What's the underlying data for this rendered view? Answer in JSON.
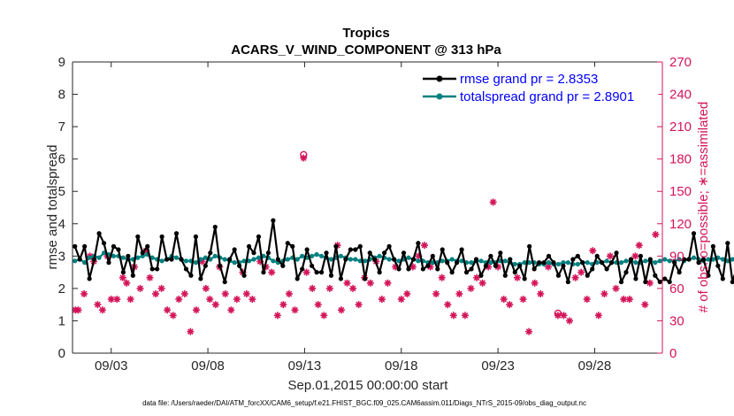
{
  "chart_data": {
    "type": "line",
    "title": "Tropics",
    "subtitle": "ACARS_V_WIND_COMPONENT @ 313 hPa",
    "xlabel": "Sep.01,2015 00:00:00 start",
    "ylabel": "rmse and totalspread",
    "ylabel_right": "# of obs: o=possible; ∗=assimilated",
    "xlim": [
      1,
      31.5
    ],
    "ylim": [
      0,
      9
    ],
    "ylim_right": [
      0,
      270
    ],
    "x_ticks": [
      3,
      8,
      13,
      18,
      23,
      28
    ],
    "x_tick_labels": [
      "09/03",
      "09/08",
      "09/13",
      "09/18",
      "09/23",
      "09/28"
    ],
    "y_ticks": [
      0,
      1,
      2,
      3,
      4,
      5,
      6,
      7,
      8,
      9
    ],
    "y_ticks_right": [
      0,
      30,
      60,
      90,
      120,
      150,
      180,
      210,
      240,
      270
    ],
    "footnote": "data file: /Users/raeder/DAI/ATM_forcXX/CAM6_setup/f.e21.FHIST_BGC.f09_025.CAM6assim.011/Diags_NTrS_2015-09/obs_diag_output.nc",
    "legend_position": "top-right",
    "series": [
      {
        "name": "rmse grand pr = 2.8353",
        "color": "#000000",
        "axis": "left",
        "x_start": 1.125,
        "x_step": 0.25,
        "values": [
          3.3,
          2.9,
          3.3,
          2.3,
          2.9,
          3.7,
          3.4,
          2.8,
          3.3,
          3.2,
          2.5,
          3.0,
          2.4,
          3.6,
          3.1,
          3.3,
          2.6,
          2.6,
          3.6,
          2.9,
          2.9,
          3.7,
          2.9,
          2.6,
          2.4,
          3.6,
          2.3,
          2.7,
          3.1,
          3.9,
          2.7,
          2.2,
          2.9,
          3.2,
          2.7,
          2.4,
          3.3,
          3.1,
          3.6,
          2.5,
          3.1,
          4.1,
          2.9,
          2.7,
          3.4,
          3.3,
          2.3,
          2.6,
          3.2,
          2.7,
          2.5,
          2.5,
          3.1,
          2.4,
          3.3,
          2.3,
          2.9,
          3.2,
          3.2,
          3.3,
          2.3,
          3.1,
          2.9,
          2.5,
          3.1,
          3.3,
          2.9,
          2.6,
          3.1,
          2.6,
          2.9,
          3.4,
          2.6,
          2.7,
          3.0,
          2.6,
          3.2,
          2.8,
          2.5,
          2.8,
          3.2,
          2.5,
          2.6,
          2.9,
          2.4,
          2.7,
          3.0,
          2.7,
          3.1,
          2.4,
          2.9,
          2.5,
          2.7,
          2.3,
          3.3,
          2.6,
          2.8,
          2.8,
          3.0,
          2.8,
          2.4,
          2.7,
          2.2,
          2.9,
          3.0,
          2.8,
          2.4,
          2.6,
          3.0,
          2.8,
          2.6,
          2.8,
          3.1,
          2.2,
          2.5,
          2.9,
          2.3,
          3.0,
          2.2,
          2.9,
          2.4,
          2.2,
          2.3,
          2.2,
          2.8,
          2.5,
          2.9,
          2.9,
          3.7,
          2.8,
          2.9,
          2.4,
          3.3,
          2.7,
          2.3,
          3.4,
          2.2,
          2.7,
          2.6,
          2.3,
          3.3,
          2.4,
          2.6,
          2.3,
          2.7,
          2.9,
          3.2,
          2.4,
          2.8,
          3.4,
          2.7,
          3.6,
          2.9,
          2.4,
          3.3,
          2.5,
          2.5,
          3.0,
          2.5,
          2.8,
          2.9,
          3.0
        ]
      },
      {
        "name": "totalspread grand pr = 2.8901",
        "color": "#008080",
        "axis": "left",
        "x_start": 1.125,
        "x_step": 0.25,
        "values": [
          2.85,
          2.9,
          2.8,
          2.95,
          3.0,
          2.95,
          3.1,
          3.05,
          3.0,
          3.0,
          2.95,
          2.9,
          2.9,
          2.95,
          3.0,
          3.05,
          2.95,
          2.9,
          2.85,
          2.9,
          3.0,
          2.95,
          2.9,
          2.85,
          2.85,
          2.8,
          2.9,
          2.95,
          2.9,
          3.0,
          2.95,
          2.9,
          2.85,
          2.8,
          2.8,
          2.85,
          2.85,
          2.9,
          2.95,
          3.0,
          2.95,
          2.85,
          2.8,
          2.85,
          2.9,
          2.95,
          2.9,
          3.0,
          2.95,
          3.0,
          3.05,
          3.0,
          2.95,
          2.9,
          2.95,
          3.0,
          2.95,
          2.9,
          2.9,
          2.85,
          2.85,
          2.9,
          2.95,
          3.0,
          2.95,
          2.9,
          2.9,
          2.85,
          2.9,
          2.95,
          2.9,
          2.85,
          2.85,
          2.8,
          2.8,
          2.8,
          2.85,
          2.85,
          2.9,
          2.85,
          2.85,
          2.8,
          2.8,
          2.85,
          2.85,
          2.8,
          2.8,
          2.8,
          2.85,
          2.85,
          2.8,
          2.75,
          2.75,
          2.8,
          2.8,
          2.8,
          2.75,
          2.75,
          2.8,
          2.75,
          2.75,
          2.8,
          2.8,
          2.75,
          2.75,
          2.8,
          2.8,
          2.75,
          2.8,
          2.8,
          2.85,
          2.8,
          2.8,
          2.8,
          2.85,
          2.85,
          2.8,
          2.8,
          2.85,
          2.85,
          2.8,
          2.85,
          2.9,
          2.85,
          2.85,
          2.9,
          2.85,
          2.9,
          2.95,
          2.9,
          2.85,
          2.9,
          2.9,
          2.95,
          2.9,
          2.85,
          2.9,
          2.85,
          2.9,
          2.9,
          2.85,
          2.9,
          2.9,
          2.95,
          3.0,
          2.95,
          2.9,
          3.0,
          3.05,
          2.95,
          3.0,
          3.05,
          3.0,
          3.0,
          3.0,
          2.95,
          2.9,
          3.0,
          3.0,
          2.95,
          3.0,
          2.95
        ]
      },
      {
        "name": "# of obs assimilated",
        "color": "#d4145a",
        "axis": "right",
        "marker": "asterisk",
        "points": [
          [
            1.15,
            40
          ],
          [
            1.3,
            40
          ],
          [
            1.6,
            55
          ],
          [
            1.9,
            90
          ],
          [
            2.1,
            85
          ],
          [
            2.3,
            45
          ],
          [
            2.55,
            40
          ],
          [
            2.8,
            90
          ],
          [
            3.0,
            50
          ],
          [
            3.3,
            50
          ],
          [
            3.6,
            70
          ],
          [
            3.8,
            65
          ],
          [
            4.0,
            50
          ],
          [
            4.2,
            80
          ],
          [
            4.5,
            60
          ],
          [
            4.8,
            95
          ],
          [
            5.0,
            70
          ],
          [
            5.3,
            55
          ],
          [
            5.6,
            60
          ],
          [
            5.9,
            40
          ],
          [
            6.2,
            35
          ],
          [
            6.5,
            50
          ],
          [
            6.8,
            55
          ],
          [
            7.1,
            20
          ],
          [
            7.4,
            40
          ],
          [
            7.7,
            85
          ],
          [
            7.9,
            60
          ],
          [
            8.1,
            50
          ],
          [
            8.4,
            45
          ],
          [
            8.6,
            80
          ],
          [
            8.9,
            55
          ],
          [
            9.2,
            40
          ],
          [
            9.5,
            50
          ],
          [
            9.8,
            75
          ],
          [
            10.0,
            55
          ],
          [
            10.3,
            50
          ],
          [
            10.7,
            85
          ],
          [
            11.0,
            80
          ],
          [
            11.3,
            75
          ],
          [
            11.6,
            35
          ],
          [
            11.9,
            45
          ],
          [
            12.2,
            55
          ],
          [
            12.5,
            40
          ],
          [
            12.95,
            181
          ],
          [
            13.1,
            75
          ],
          [
            13.4,
            60
          ],
          [
            13.7,
            45
          ],
          [
            14.0,
            35
          ],
          [
            14.3,
            60
          ],
          [
            14.7,
            100
          ],
          [
            14.9,
            40
          ],
          [
            15.2,
            65
          ],
          [
            15.5,
            60
          ],
          [
            15.8,
            45
          ],
          [
            16.1,
            70
          ],
          [
            16.4,
            65
          ],
          [
            16.7,
            85
          ],
          [
            17.0,
            50
          ],
          [
            17.3,
            65
          ],
          [
            17.7,
            80
          ],
          [
            18.0,
            50
          ],
          [
            18.3,
            55
          ],
          [
            18.6,
            80
          ],
          [
            18.9,
            90
          ],
          [
            19.2,
            100
          ],
          [
            19.5,
            80
          ],
          [
            19.8,
            55
          ],
          [
            20.1,
            70
          ],
          [
            20.4,
            45
          ],
          [
            20.7,
            35
          ],
          [
            21.0,
            55
          ],
          [
            21.3,
            35
          ],
          [
            21.6,
            60
          ],
          [
            21.9,
            70
          ],
          [
            22.2,
            65
          ],
          [
            22.5,
            80
          ],
          [
            22.75,
            140
          ],
          [
            23.0,
            80
          ],
          [
            23.3,
            50
          ],
          [
            23.6,
            45
          ],
          [
            24.0,
            70
          ],
          [
            24.3,
            50
          ],
          [
            24.6,
            20
          ],
          [
            24.9,
            65
          ],
          [
            25.2,
            55
          ],
          [
            25.6,
            80
          ],
          [
            26.1,
            35
          ],
          [
            26.4,
            35
          ],
          [
            26.7,
            30
          ],
          [
            27.0,
            70
          ],
          [
            27.3,
            75
          ],
          [
            27.6,
            50
          ],
          [
            27.9,
            95
          ],
          [
            28.2,
            35
          ],
          [
            28.5,
            55
          ],
          [
            28.8,
            90
          ],
          [
            29.1,
            60
          ],
          [
            29.5,
            50
          ],
          [
            29.8,
            50
          ],
          [
            30.1,
            90
          ],
          [
            30.3,
            100
          ],
          [
            30.6,
            45
          ],
          [
            30.85,
            65
          ],
          [
            31.15,
            110
          ]
        ]
      },
      {
        "name": "# of obs possible",
        "color": "#d4145a",
        "axis": "right",
        "marker": "circle",
        "points": [
          [
            12.95,
            184
          ],
          [
            26.1,
            37
          ]
        ]
      }
    ]
  }
}
